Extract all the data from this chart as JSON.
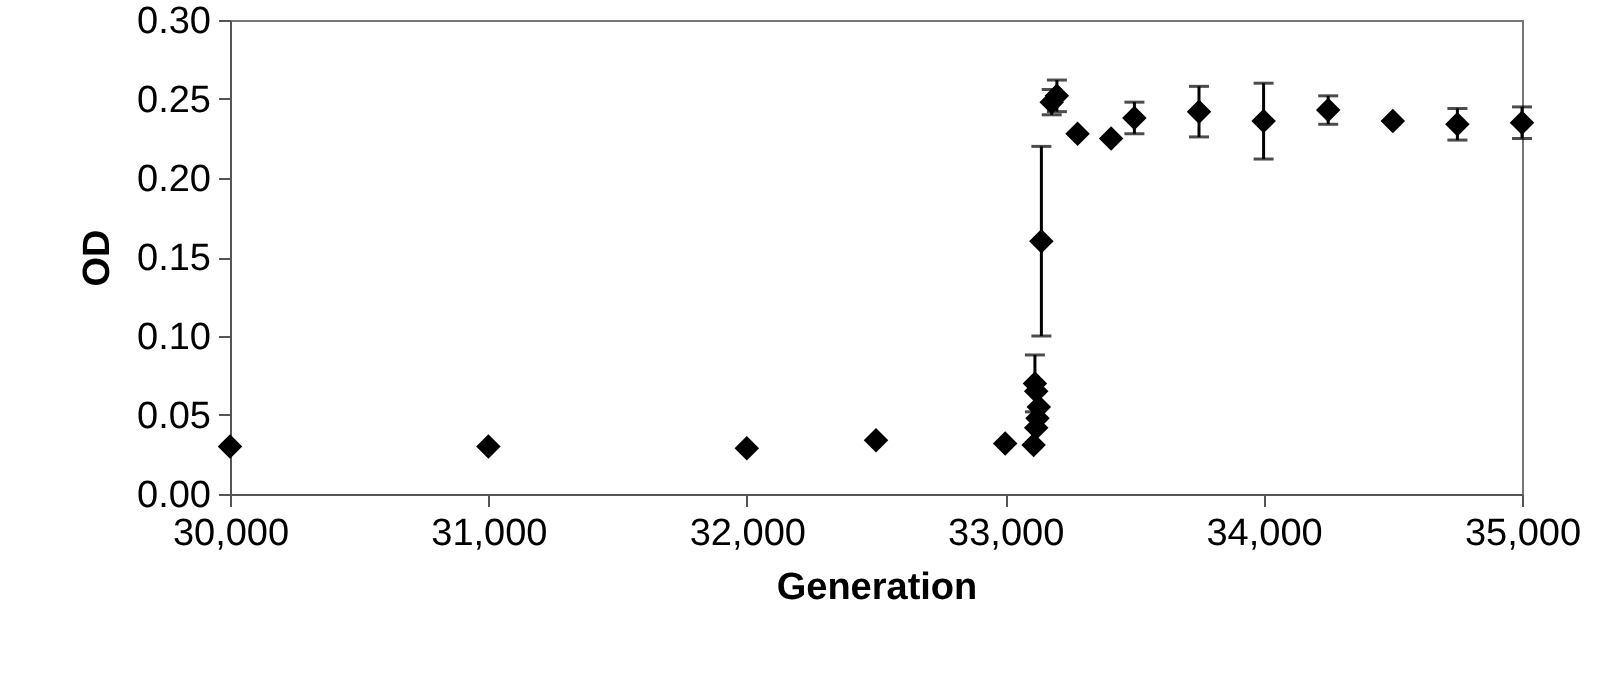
{
  "chart_data": {
    "type": "scatter",
    "xlabel": "Generation",
    "ylabel": "OD",
    "marker": "diamond",
    "grid": false,
    "x": [
      30000,
      31000,
      32000,
      32500,
      33000,
      33110,
      33120,
      33125,
      33130,
      33120,
      33115,
      33140,
      33180,
      33200,
      33280,
      33410,
      33500,
      33750,
      34000,
      34250,
      34500,
      34750,
      35000
    ],
    "series": [
      {
        "color": "#000000",
        "values": [
          0.03,
          0.03,
          0.029,
          0.034,
          0.032,
          0.031,
          0.042,
          0.048,
          0.055,
          0.065,
          0.07,
          0.16,
          0.248,
          0.252,
          0.228,
          0.225,
          0.238,
          0.242,
          0.236,
          0.243,
          0.236,
          0.234,
          0.235
        ],
        "errors": [
          null,
          null,
          null,
          null,
          null,
          null,
          null,
          null,
          null,
          null,
          0.018,
          0.06,
          0.008,
          0.01,
          null,
          null,
          0.01,
          0.016,
          0.024,
          0.009,
          null,
          0.01,
          0.01
        ]
      }
    ],
    "xlim": [
      30000,
      35000
    ],
    "xticks": [
      {
        "value": 30000,
        "label": "30,000"
      },
      {
        "value": 31000,
        "label": "31,000"
      },
      {
        "value": 32000,
        "label": "32,000"
      },
      {
        "value": 33000,
        "label": "33,000"
      },
      {
        "value": 34000,
        "label": "34,000"
      },
      {
        "value": 35000,
        "label": "35,000"
      }
    ],
    "ylim": [
      0,
      0.3
    ],
    "yticks": [
      {
        "value": 0,
        "label": "0.00"
      },
      {
        "value": 0.05,
        "label": "0.05"
      },
      {
        "value": 0.1,
        "label": "0.10"
      },
      {
        "value": 0.15,
        "label": "0.15"
      },
      {
        "value": 0.2,
        "label": "0.20"
      },
      {
        "value": 0.25,
        "label": "0.25"
      },
      {
        "value": 0.3,
        "label": "0.30"
      }
    ]
  }
}
